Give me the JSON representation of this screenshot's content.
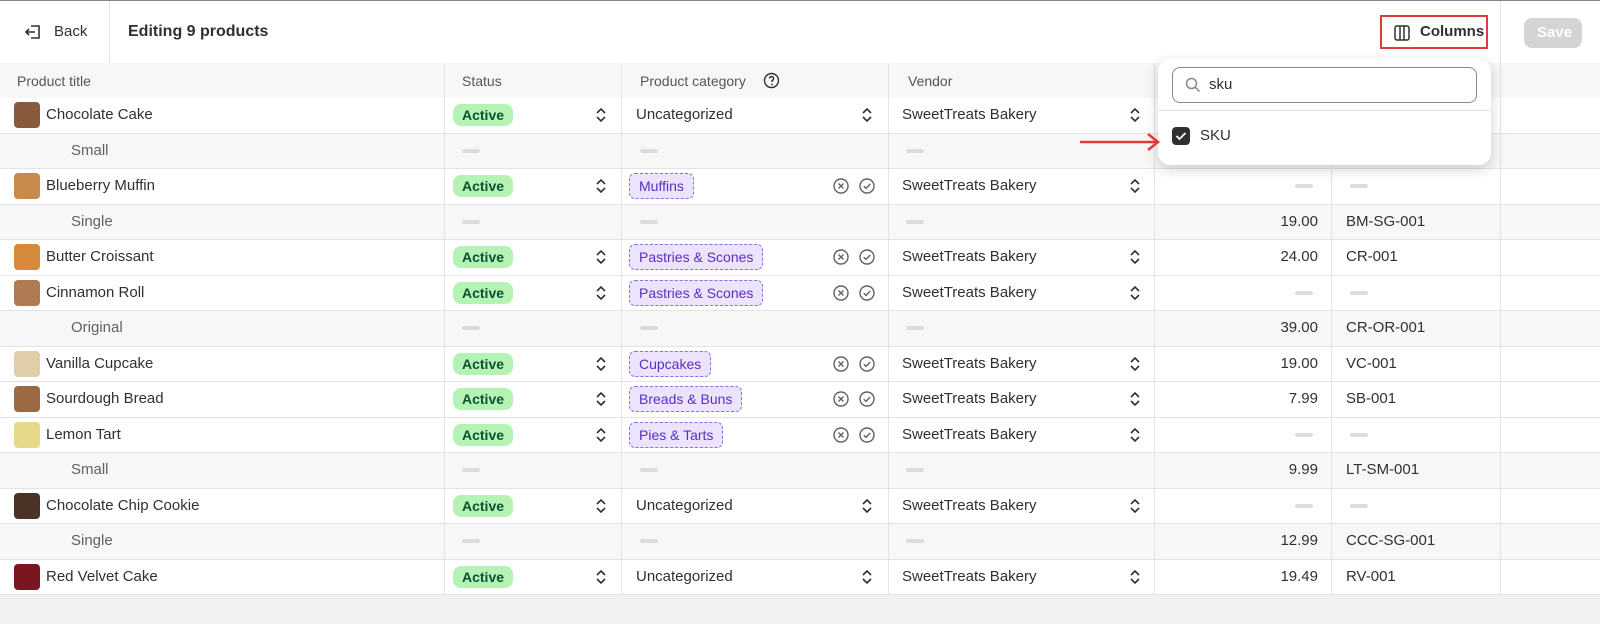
{
  "header": {
    "back": "Back",
    "title": "Editing 9 products",
    "columns_button": "Columns",
    "save": "Save"
  },
  "table": {
    "columns": [
      "Product title",
      "Status",
      "Product category",
      "Vendor"
    ],
    "rows": [
      {
        "title": "Chocolate Cake",
        "status": "Active",
        "category": "Uncategorized",
        "vendor": "SweetTreats Bakery"
      },
      {
        "variant": "Small"
      },
      {
        "title": "Blueberry Muffin",
        "status": "Active",
        "category_tag": "Muffins",
        "vendor": "SweetTreats Bakery"
      },
      {
        "variant": "Single",
        "price": "19.00",
        "sku": "BM-SG-001"
      },
      {
        "title": "Butter Croissant",
        "status": "Active",
        "category_tag": "Pastries & Scones",
        "vendor": "SweetTreats Bakery",
        "price": "24.00",
        "sku": "CR-001"
      },
      {
        "title": "Cinnamon Roll",
        "status": "Active",
        "category_tag": "Pastries & Scones",
        "vendor": "SweetTreats Bakery"
      },
      {
        "variant": "Original",
        "price": "39.00",
        "sku": "CR-OR-001"
      },
      {
        "title": "Vanilla Cupcake",
        "status": "Active",
        "category_tag": "Cupcakes",
        "vendor": "SweetTreats Bakery",
        "price": "19.00",
        "sku": "VC-001"
      },
      {
        "title": "Sourdough Bread",
        "status": "Active",
        "category_tag": "Breads & Buns",
        "vendor": "SweetTreats Bakery",
        "price": "7.99",
        "sku": "SB-001"
      },
      {
        "title": "Lemon Tart",
        "status": "Active",
        "category_tag": "Pies & Tarts",
        "vendor": "SweetTreats Bakery"
      },
      {
        "variant": "Small",
        "price": "9.99",
        "sku": "LT-SM-001"
      },
      {
        "title": "Chocolate Chip Cookie",
        "status": "Active",
        "category": "Uncategorized",
        "vendor": "SweetTreats Bakery"
      },
      {
        "variant": "Single",
        "price": "12.99",
        "sku": "CCC-SG-001"
      },
      {
        "title": "Red Velvet Cake",
        "status": "Active",
        "category": "Uncategorized",
        "vendor": "SweetTreats Bakery",
        "price": "19.49",
        "sku": "RV-001"
      }
    ]
  },
  "popover": {
    "search": "sku",
    "option": "SKU"
  }
}
